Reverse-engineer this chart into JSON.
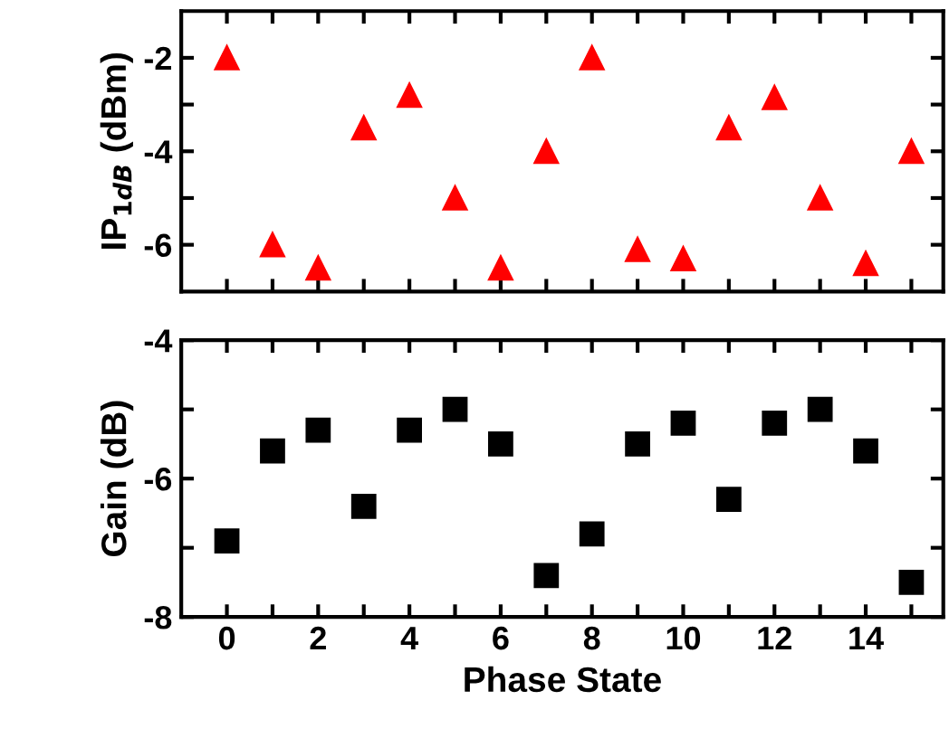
{
  "chart_data": [
    {
      "type": "scatter",
      "ylabel": "IP$_{1dB}$ (dBm)",
      "x": [
        0,
        1,
        2,
        3,
        4,
        5,
        6,
        7,
        8,
        9,
        10,
        11,
        12,
        13,
        14,
        15
      ],
      "series": [
        {
          "color": "#ff0000",
          "marker": "triangle",
          "values": [
            -2,
            -6,
            -6.5,
            -3.5,
            -2.8,
            -5,
            -6.5,
            -4,
            -2,
            -6.1,
            -6.3,
            -3.5,
            -2.85,
            -5,
            -6.4,
            -4
          ]
        }
      ],
      "xlim": [
        -1,
        15.7
      ],
      "xticks": [
        0,
        {
          "value": 1,
          "label": null
        },
        2,
        {
          "value": 3,
          "label": null
        },
        4,
        {
          "value": 5,
          "label": null
        },
        6,
        {
          "value": 7,
          "label": null
        },
        8,
        {
          "value": 9,
          "label": null
        },
        10,
        {
          "value": 11,
          "label": null
        },
        12,
        {
          "value": 13,
          "label": null
        },
        14,
        {
          "value": 15,
          "label": null
        }
      ],
      "ylim": [
        -7,
        -1
      ],
      "yticks": [
        -6,
        {
          "value": -5,
          "label": null
        },
        -4,
        {
          "value": -3,
          "label": null
        },
        -2
      ],
      "tick_labels": "y",
      "grid": false,
      "legend": false
    },
    {
      "type": "scatter",
      "xlabel": "Phase State",
      "ylabel": "Gain (dB)",
      "x": [
        0,
        1,
        2,
        3,
        4,
        5,
        6,
        7,
        8,
        9,
        10,
        11,
        12,
        13,
        14,
        15
      ],
      "series": [
        {
          "color": "#000000",
          "marker": "square",
          "values": [
            -6.9,
            -5.6,
            -5.3,
            -6.4,
            -5.3,
            -5,
            -5.5,
            -7.4,
            -6.8,
            -5.5,
            -5.2,
            -6.3,
            -5.2,
            -5,
            -5.6,
            -7.5
          ]
        }
      ],
      "xlim": [
        -1,
        15.7
      ],
      "xticks": [
        0,
        {
          "value": 1,
          "label": null
        },
        2,
        {
          "value": 3,
          "label": null
        },
        4,
        {
          "value": 5,
          "label": null
        },
        6,
        {
          "value": 7,
          "label": null
        },
        8,
        {
          "value": 9,
          "label": null
        },
        10,
        {
          "value": 11,
          "label": null
        },
        12,
        {
          "value": 13,
          "label": null
        },
        14,
        {
          "value": 15,
          "label": null
        }
      ],
      "ylim": [
        -8,
        -4
      ],
      "yticks": [
        -8,
        {
          "value": -7,
          "label": null
        },
        -6,
        {
          "value": -5,
          "label": null
        },
        -4
      ],
      "grid": false,
      "legend": false
    }
  ]
}
